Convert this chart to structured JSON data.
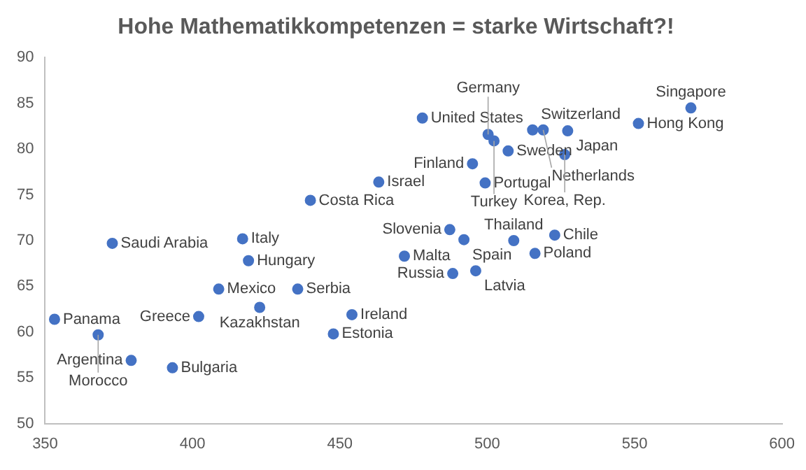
{
  "chart_data": {
    "type": "scatter",
    "title": "Hohe Mathematikkompetenzen = starke Wirtschaft?!",
    "x": [
      478,
      463.2,
      499.3,
      440,
      372.8,
      417,
      419,
      408.9,
      435.7,
      422.8,
      454.1,
      447.8,
      353.2,
      402.1,
      368,
      379.2,
      393.2,
      471.9,
      500.3,
      502.3,
      507.1,
      495,
      515.4,
      519,
      527.3,
      551.3,
      569.1,
      526.3,
      487.3,
      492.1,
      509,
      522.9,
      516.2,
      496.1,
      488.3
    ],
    "values": [
      83.4,
      76.4,
      76.3,
      74.4,
      69.7,
      70.2,
      67.8,
      64.7,
      64.7,
      62.7,
      61.9,
      59.8,
      61.4,
      61.7,
      59.7,
      56.9,
      56.1,
      68.3,
      81.6,
      80.9,
      79.8,
      78.4,
      82.1,
      82.1,
      82,
      82.8,
      84.5,
      79.4,
      71.2,
      70.1,
      70,
      70.6,
      68.6,
      66.7,
      66.4
    ],
    "value_labels": [
      "United States",
      "Israel",
      "Portugal",
      "Costa Rica",
      "Saudi Arabia",
      "Italy",
      "Hungary",
      "Mexico",
      "Serbia",
      "Kazakhstan",
      "Ireland",
      "Estonia",
      "Panama",
      "Greece",
      "Morocco",
      "Argentina",
      "Bulgaria",
      "Malta",
      "Germany",
      "Turkey",
      "Sweden",
      "Finland",
      "Switzerland",
      "Netherlands",
      "Japan",
      "Hong Kong",
      "Singapore",
      "Korea, Rep.",
      "Slovenia",
      "Spain",
      "Thailand",
      "Chile",
      "Poland",
      "Latvia",
      "Russia"
    ],
    "color": "#4472c4",
    "marker": "circle",
    "xlim": [
      350,
      600
    ],
    "xticks": [
      350,
      400,
      450,
      500,
      550,
      600
    ],
    "ylim": [
      50,
      90
    ],
    "yticks": [
      50,
      55,
      60,
      65,
      70,
      75,
      80,
      85,
      90
    ],
    "grid": false,
    "legend": false
  }
}
